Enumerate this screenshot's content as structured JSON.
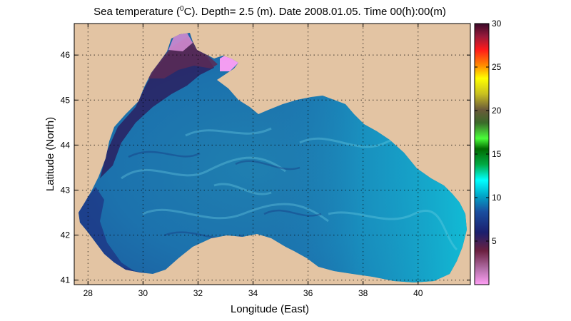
{
  "figure": {
    "title_prefix": "Sea temperature (",
    "title_sup": "0",
    "title_suffix": "C). Depth=  2.5 (m). Date 2008.01.05. Time 00(h):00(m)",
    "xlabel": "Longitude (East)",
    "ylabel": "Latitude (North)"
  },
  "map": {
    "region": "Black Sea",
    "land_color": "#e3c4a3",
    "xlim": [
      27.5,
      41.9
    ],
    "ylim": [
      40.9,
      46.7
    ],
    "xticks": [
      "28",
      "30",
      "32",
      "34",
      "36",
      "38",
      "40"
    ],
    "yticks": [
      "41",
      "42",
      "43",
      "44",
      "45",
      "46"
    ],
    "grid": "dotted"
  },
  "colorbar": {
    "range": [
      0,
      30
    ],
    "ticks": [
      "30",
      "25",
      "20",
      "15",
      "10",
      "5"
    ],
    "colors": [
      "#ff9ff5",
      "#6b2040",
      "#1b1f6e",
      "#1a4fa0",
      "#00a6c8",
      "#00ffff",
      "#006a00",
      "#4aff3a",
      "#6a5a3a",
      "#ffff00",
      "#ff8a00",
      "#ff1a1a",
      "#9a1a3a",
      "#3a0a2a"
    ]
  }
}
